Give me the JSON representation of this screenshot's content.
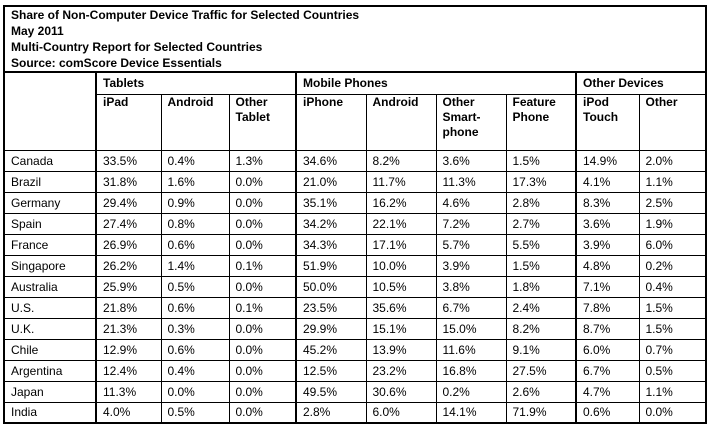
{
  "header": {
    "title": "Share of Non-Computer Device Traffic for Selected Countries",
    "date": "May 2011",
    "subtitle": "Multi-Country Report for Selected Countries",
    "source": "Source: comScore Device Essentials"
  },
  "table": {
    "corner_label": "",
    "column_groups": [
      {
        "label": "Tablets",
        "span": 3
      },
      {
        "label": "Mobile Phones",
        "span": 4
      },
      {
        "label": "Other Devices",
        "span": 2
      }
    ],
    "columns": [
      "iPad",
      "Android",
      "Other Tablet",
      "iPhone",
      "Android",
      "Other Smart-phone",
      "Feature Phone",
      "iPod Touch",
      "Other"
    ],
    "group_start_column_indexes": [
      0,
      3,
      7
    ],
    "rows": [
      {
        "country": "Canada",
        "values": [
          "33.5%",
          "0.4%",
          "1.3%",
          "34.6%",
          "8.2%",
          "3.6%",
          "1.5%",
          "14.9%",
          "2.0%"
        ]
      },
      {
        "country": "Brazil",
        "values": [
          "31.8%",
          "1.6%",
          "0.0%",
          "21.0%",
          "11.7%",
          "11.3%",
          "17.3%",
          "4.1%",
          "1.1%"
        ]
      },
      {
        "country": "Germany",
        "values": [
          "29.4%",
          "0.9%",
          "0.0%",
          "35.1%",
          "16.2%",
          "4.6%",
          "2.8%",
          "8.3%",
          "2.5%"
        ]
      },
      {
        "country": "Spain",
        "values": [
          "27.4%",
          "0.8%",
          "0.0%",
          "34.2%",
          "22.1%",
          "7.2%",
          "2.7%",
          "3.6%",
          "1.9%"
        ]
      },
      {
        "country": "France",
        "values": [
          "26.9%",
          "0.6%",
          "0.0%",
          "34.3%",
          "17.1%",
          "5.7%",
          "5.5%",
          "3.9%",
          "6.0%"
        ]
      },
      {
        "country": "Singapore",
        "values": [
          "26.2%",
          "1.4%",
          "0.1%",
          "51.9%",
          "10.0%",
          "3.9%",
          "1.5%",
          "4.8%",
          "0.2%"
        ]
      },
      {
        "country": "Australia",
        "values": [
          "25.9%",
          "0.5%",
          "0.0%",
          "50.0%",
          "10.5%",
          "3.8%",
          "1.8%",
          "7.1%",
          "0.4%"
        ]
      },
      {
        "country": "U.S.",
        "values": [
          "21.8%",
          "0.6%",
          "0.1%",
          "23.5%",
          "35.6%",
          "6.7%",
          "2.4%",
          "7.8%",
          "1.5%"
        ]
      },
      {
        "country": "U.K.",
        "values": [
          "21.3%",
          "0.3%",
          "0.0%",
          "29.9%",
          "15.1%",
          "15.0%",
          "8.2%",
          "8.7%",
          "1.5%"
        ]
      },
      {
        "country": "Chile",
        "values": [
          "12.9%",
          "0.6%",
          "0.0%",
          "45.2%",
          "13.9%",
          "11.6%",
          "9.1%",
          "6.0%",
          "0.7%"
        ]
      },
      {
        "country": "Argentina",
        "values": [
          "12.4%",
          "0.4%",
          "0.0%",
          "12.5%",
          "23.2%",
          "16.8%",
          "27.5%",
          "6.7%",
          "0.5%"
        ]
      },
      {
        "country": "Japan",
        "values": [
          "11.3%",
          "0.0%",
          "0.0%",
          "49.5%",
          "30.6%",
          "0.2%",
          "2.6%",
          "4.7%",
          "1.1%"
        ]
      },
      {
        "country": "India",
        "values": [
          "4.0%",
          "0.5%",
          "0.0%",
          "2.8%",
          "6.0%",
          "14.1%",
          "71.9%",
          "0.6%",
          "0.0%"
        ]
      }
    ]
  },
  "colors": {
    "border": "#000000",
    "text": "#000000",
    "background": "#ffffff"
  }
}
